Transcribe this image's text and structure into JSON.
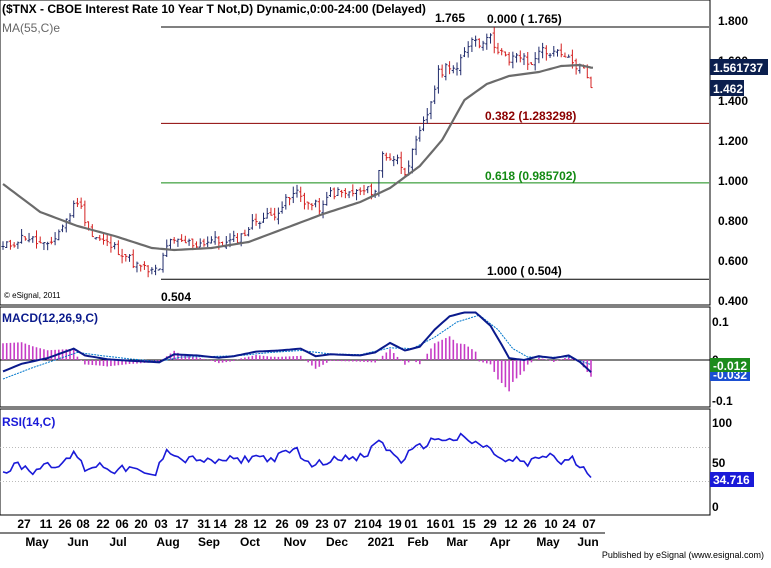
{
  "header": {
    "title": "($TNX - CBOE Interest Rate 10 Year T Not,D) Dynamic,0:00-24:00 (Delayed)",
    "ma_label": "MA(55,C)e",
    "copyright": "© eSignal, 2011"
  },
  "footer": {
    "published": "Published by eSignal (www.esignal.com)"
  },
  "colors": {
    "up_bar": "#1f2a6b",
    "down_bar": "#d42020",
    "ma": "#6b6b6b",
    "fib_382": "#8b0000",
    "fib_618": "#138a13",
    "fib_line": "#000000",
    "macd_line": "#0a1a8c",
    "macd_signal": "#0077cc",
    "macd_hist": "#c63cc6",
    "rsi_line": "#1a1ad8",
    "tag_dark": "#0b1f4e",
    "tag_green": "#1c8b1c",
    "tag_blue": "#1b4fd1"
  },
  "chart_data": [
    {
      "panel": "price",
      "type": "ohlc",
      "ylim": [
        0.4,
        1.85
      ],
      "yticks": [
        "1.800",
        "1.600",
        "1.400",
        "1.200",
        "1.000",
        "0.800",
        "0.600",
        "0.400"
      ],
      "fib_levels": [
        {
          "value": 1.765,
          "label": "0.000 ( 1.765)"
        },
        {
          "value": 1.283298,
          "label": "0.382 (1.283298)"
        },
        {
          "value": 0.985702,
          "label": "0.618 (0.985702)"
        },
        {
          "value": 0.504,
          "label": "1.000 ( 0.504)"
        }
      ],
      "annotations": {
        "high": "1.765",
        "low": "0.504"
      },
      "tags": {
        "ma_value": "1.561737",
        "last_close": "1.462"
      },
      "anchors": [
        {
          "t": 0,
          "v": 0.66
        },
        {
          "t": 6,
          "v": 0.72
        },
        {
          "t": 12,
          "v": 0.66
        },
        {
          "t": 17,
          "v": 0.8
        },
        {
          "t": 20,
          "v": 0.9
        },
        {
          "t": 24,
          "v": 0.72
        },
        {
          "t": 28,
          "v": 0.68
        },
        {
          "t": 32,
          "v": 0.64
        },
        {
          "t": 36,
          "v": 0.57
        },
        {
          "t": 40,
          "v": 0.54
        },
        {
          "t": 42,
          "v": 0.55
        },
        {
          "t": 44,
          "v": 0.68
        },
        {
          "t": 48,
          "v": 0.69
        },
        {
          "t": 52,
          "v": 0.68
        },
        {
          "t": 56,
          "v": 0.7
        },
        {
          "t": 60,
          "v": 0.68
        },
        {
          "t": 64,
          "v": 0.72
        },
        {
          "t": 68,
          "v": 0.8
        },
        {
          "t": 72,
          "v": 0.82
        },
        {
          "t": 76,
          "v": 0.89
        },
        {
          "t": 79,
          "v": 0.94
        },
        {
          "t": 82,
          "v": 0.88
        },
        {
          "t": 86,
          "v": 0.86
        },
        {
          "t": 88,
          "v": 0.94
        },
        {
          "t": 92,
          "v": 0.93
        },
        {
          "t": 96,
          "v": 0.94
        },
        {
          "t": 100,
          "v": 0.95
        },
        {
          "t": 102,
          "v": 1.13
        },
        {
          "t": 106,
          "v": 1.1
        },
        {
          "t": 108,
          "v": 1.05
        },
        {
          "t": 110,
          "v": 1.13
        },
        {
          "t": 114,
          "v": 1.33
        },
        {
          "t": 117,
          "v": 1.53
        },
        {
          "t": 120,
          "v": 1.58
        },
        {
          "t": 122,
          "v": 1.55
        },
        {
          "t": 124,
          "v": 1.63
        },
        {
          "t": 126,
          "v": 1.72
        },
        {
          "t": 128,
          "v": 1.68
        },
        {
          "t": 130,
          "v": 1.73
        },
        {
          "t": 132,
          "v": 1.68
        },
        {
          "t": 134,
          "v": 1.64
        },
        {
          "t": 136,
          "v": 1.58
        },
        {
          "t": 138,
          "v": 1.63
        },
        {
          "t": 140,
          "v": 1.6
        },
        {
          "t": 142,
          "v": 1.57
        },
        {
          "t": 144,
          "v": 1.66
        },
        {
          "t": 146,
          "v": 1.63
        },
        {
          "t": 148,
          "v": 1.65
        },
        {
          "t": 150,
          "v": 1.61
        },
        {
          "t": 152,
          "v": 1.6
        },
        {
          "t": 154,
          "v": 1.57
        },
        {
          "t": 156,
          "v": 1.55
        },
        {
          "t": 157,
          "v": 1.52
        },
        {
          "t": 158,
          "v": 1.46
        }
      ],
      "ma_anchors": [
        {
          "t": 0,
          "v": 0.98
        },
        {
          "t": 10,
          "v": 0.84
        },
        {
          "t": 20,
          "v": 0.77
        },
        {
          "t": 30,
          "v": 0.72
        },
        {
          "t": 40,
          "v": 0.66
        },
        {
          "t": 46,
          "v": 0.65
        },
        {
          "t": 56,
          "v": 0.66
        },
        {
          "t": 66,
          "v": 0.69
        },
        {
          "t": 76,
          "v": 0.76
        },
        {
          "t": 86,
          "v": 0.83
        },
        {
          "t": 96,
          "v": 0.89
        },
        {
          "t": 104,
          "v": 0.96
        },
        {
          "t": 112,
          "v": 1.07
        },
        {
          "t": 118,
          "v": 1.2
        },
        {
          "t": 124,
          "v": 1.4
        },
        {
          "t": 130,
          "v": 1.48
        },
        {
          "t": 136,
          "v": 1.52
        },
        {
          "t": 144,
          "v": 1.54
        },
        {
          "t": 150,
          "v": 1.57
        },
        {
          "t": 155,
          "v": 1.575
        },
        {
          "t": 158,
          "v": 1.562
        }
      ]
    },
    {
      "panel": "macd",
      "type": "line",
      "title": "MACD(12,26,9,C)",
      "ylim": [
        -0.12,
        0.14
      ],
      "yticks": [
        "0.1",
        "0",
        "-0.1"
      ],
      "tags": {
        "macd": "-0.032",
        "hist": "-0.012"
      },
      "macd_anchors": [
        {
          "t": 0,
          "v": -0.03
        },
        {
          "t": 5,
          "v": -0.01
        },
        {
          "t": 12,
          "v": 0.005
        },
        {
          "t": 19,
          "v": 0.03
        },
        {
          "t": 22,
          "v": 0.012
        },
        {
          "t": 28,
          "v": 0.002
        },
        {
          "t": 36,
          "v": -0.003
        },
        {
          "t": 42,
          "v": -0.006
        },
        {
          "t": 46,
          "v": 0.015
        },
        {
          "t": 52,
          "v": 0.012
        },
        {
          "t": 58,
          "v": 0.006
        },
        {
          "t": 62,
          "v": 0.01
        },
        {
          "t": 68,
          "v": 0.022
        },
        {
          "t": 74,
          "v": 0.025
        },
        {
          "t": 80,
          "v": 0.03
        },
        {
          "t": 84,
          "v": 0.01
        },
        {
          "t": 88,
          "v": 0.015
        },
        {
          "t": 96,
          "v": 0.012
        },
        {
          "t": 100,
          "v": 0.02
        },
        {
          "t": 104,
          "v": 0.045
        },
        {
          "t": 108,
          "v": 0.025
        },
        {
          "t": 112,
          "v": 0.035
        },
        {
          "t": 116,
          "v": 0.08
        },
        {
          "t": 120,
          "v": 0.115
        },
        {
          "t": 124,
          "v": 0.125
        },
        {
          "t": 127,
          "v": 0.125
        },
        {
          "t": 131,
          "v": 0.09
        },
        {
          "t": 134,
          "v": 0.04
        },
        {
          "t": 136,
          "v": 0.005
        },
        {
          "t": 140,
          "v": 0.0
        },
        {
          "t": 144,
          "v": 0.01
        },
        {
          "t": 148,
          "v": 0.005
        },
        {
          "t": 152,
          "v": 0.012
        },
        {
          "t": 155,
          "v": -0.005
        },
        {
          "t": 158,
          "v": -0.032
        }
      ],
      "signal_anchors": [
        {
          "t": 0,
          "v": -0.05
        },
        {
          "t": 8,
          "v": -0.02
        },
        {
          "t": 14,
          "v": 0.0
        },
        {
          "t": 20,
          "v": 0.02
        },
        {
          "t": 26,
          "v": 0.012
        },
        {
          "t": 34,
          "v": 0.003
        },
        {
          "t": 42,
          "v": -0.004
        },
        {
          "t": 48,
          "v": 0.008
        },
        {
          "t": 56,
          "v": 0.009
        },
        {
          "t": 64,
          "v": 0.012
        },
        {
          "t": 72,
          "v": 0.02
        },
        {
          "t": 80,
          "v": 0.025
        },
        {
          "t": 88,
          "v": 0.016
        },
        {
          "t": 96,
          "v": 0.014
        },
        {
          "t": 104,
          "v": 0.032
        },
        {
          "t": 110,
          "v": 0.03
        },
        {
          "t": 116,
          "v": 0.06
        },
        {
          "t": 122,
          "v": 0.1
        },
        {
          "t": 128,
          "v": 0.118
        },
        {
          "t": 133,
          "v": 0.08
        },
        {
          "t": 137,
          "v": 0.03
        },
        {
          "t": 141,
          "v": 0.008
        },
        {
          "t": 146,
          "v": 0.007
        },
        {
          "t": 152,
          "v": 0.008
        },
        {
          "t": 158,
          "v": -0.012
        }
      ]
    },
    {
      "panel": "rsi",
      "type": "line",
      "title": "RSI(14,C)",
      "ylim": [
        0,
        100
      ],
      "yticks": [
        "100",
        "50",
        "0"
      ],
      "guides": [
        70,
        30
      ],
      "tags": {
        "rsi": "34.716"
      },
      "anchors": [
        {
          "t": 0,
          "v": 40
        },
        {
          "t": 4,
          "v": 50
        },
        {
          "t": 8,
          "v": 42
        },
        {
          "t": 12,
          "v": 52
        },
        {
          "t": 16,
          "v": 48
        },
        {
          "t": 19,
          "v": 65
        },
        {
          "t": 22,
          "v": 45
        },
        {
          "t": 26,
          "v": 50
        },
        {
          "t": 30,
          "v": 43
        },
        {
          "t": 34,
          "v": 46
        },
        {
          "t": 38,
          "v": 38
        },
        {
          "t": 41,
          "v": 38
        },
        {
          "t": 44,
          "v": 70
        },
        {
          "t": 48,
          "v": 55
        },
        {
          "t": 52,
          "v": 57
        },
        {
          "t": 56,
          "v": 52
        },
        {
          "t": 60,
          "v": 56
        },
        {
          "t": 64,
          "v": 55
        },
        {
          "t": 68,
          "v": 60
        },
        {
          "t": 72,
          "v": 56
        },
        {
          "t": 76,
          "v": 63
        },
        {
          "t": 79,
          "v": 68
        },
        {
          "t": 82,
          "v": 50
        },
        {
          "t": 86,
          "v": 52
        },
        {
          "t": 90,
          "v": 60
        },
        {
          "t": 94,
          "v": 55
        },
        {
          "t": 98,
          "v": 62
        },
        {
          "t": 101,
          "v": 80
        },
        {
          "t": 104,
          "v": 64
        },
        {
          "t": 107,
          "v": 55
        },
        {
          "t": 110,
          "v": 66
        },
        {
          "t": 114,
          "v": 75
        },
        {
          "t": 117,
          "v": 82
        },
        {
          "t": 120,
          "v": 78
        },
        {
          "t": 123,
          "v": 82
        },
        {
          "t": 126,
          "v": 76
        },
        {
          "t": 129,
          "v": 72
        },
        {
          "t": 132,
          "v": 64
        },
        {
          "t": 135,
          "v": 52
        },
        {
          "t": 138,
          "v": 56
        },
        {
          "t": 141,
          "v": 50
        },
        {
          "t": 144,
          "v": 58
        },
        {
          "t": 147,
          "v": 62
        },
        {
          "t": 150,
          "v": 52
        },
        {
          "t": 153,
          "v": 56
        },
        {
          "t": 156,
          "v": 44
        },
        {
          "t": 158,
          "v": 34.716
        }
      ]
    }
  ],
  "x_axis": {
    "day_ticks": [
      "27",
      "11",
      "26",
      "08",
      "22",
      "06",
      "20",
      "03",
      "17",
      "31",
      "14",
      "28",
      "12",
      "26",
      "09",
      "23",
      "07",
      "21",
      "04",
      "19",
      "01",
      "16",
      "01",
      "15",
      "29",
      "12",
      "26",
      "10",
      "24",
      "07"
    ],
    "month_labels": [
      "May",
      "Jun",
      "Jul",
      "Aug",
      "Sep",
      "Oct",
      "Nov",
      "Dec",
      "2021",
      "Feb",
      "Mar",
      "Apr",
      "May",
      "Jun"
    ]
  }
}
